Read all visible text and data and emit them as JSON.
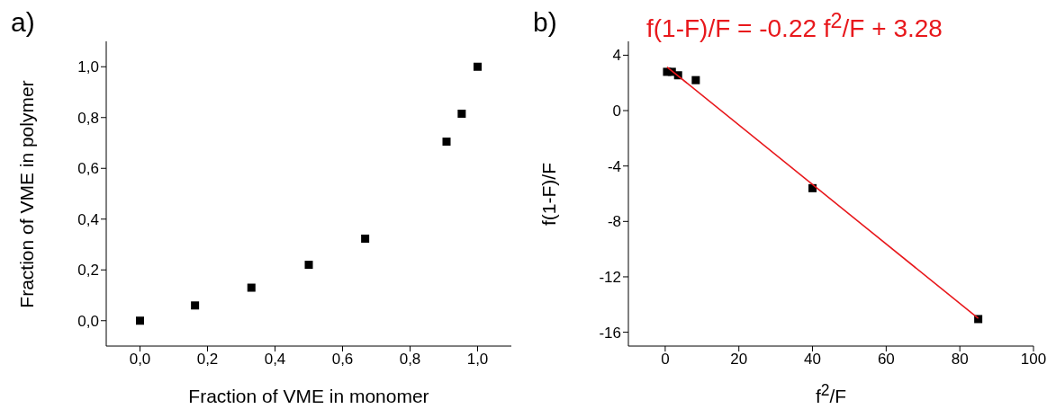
{
  "chart_data": [
    {
      "type": "scatter",
      "title": "a)",
      "xlabel": "Fraction of VME in monomer",
      "ylabel": "Fraction of VME in polymer",
      "marker": "square",
      "x": [
        0,
        0.163,
        0.33,
        0.5,
        0.667,
        0.908,
        0.953,
        1.0
      ],
      "series": [
        {
          "color": "#000000",
          "values": [
            0,
            0.06,
            0.13,
            0.22,
            0.323,
            0.705,
            0.815,
            1.0
          ]
        }
      ],
      "xlim": [
        -0.1,
        1.1
      ],
      "ylim": [
        -0.1,
        1.1
      ],
      "xticks": [
        {
          "value": 0,
          "label": "0,0"
        },
        {
          "value": 0.2,
          "label": "0,2"
        },
        {
          "value": 0.4,
          "label": "0,4"
        },
        {
          "value": 0.6,
          "label": "0,6"
        },
        {
          "value": 0.8,
          "label": "0,8"
        },
        {
          "value": 1.0,
          "label": "1,0"
        }
      ],
      "yticks": [
        {
          "value": 0,
          "label": "0,0"
        },
        {
          "value": 0.2,
          "label": "0,2"
        },
        {
          "value": 0.4,
          "label": "0,4"
        },
        {
          "value": 0.6,
          "label": "0,6"
        },
        {
          "value": 0.8,
          "label": "0,8"
        },
        {
          "value": 1.0,
          "label": "1,0"
        }
      ]
    },
    {
      "type": "scatter",
      "title": "b)",
      "xlabel": "f$^{2}$/F",
      "ylabel": "f(1-F)/F",
      "marker": "square",
      "annotations": [
        "f(1-F)/F = -0.22 f$^{2}$/F + 3.28"
      ],
      "x": [
        0.5,
        1.8,
        3.5,
        8.3,
        40,
        85
      ],
      "series": [
        {
          "color": "#000000",
          "values": [
            2.8,
            2.8,
            2.55,
            2.2,
            -5.6,
            -15.05
          ]
        },
        {
          "type": "line",
          "color": "#e8181c",
          "marker": "none",
          "x": [
            0.5,
            85
          ],
          "values": [
            3.15,
            -15.0
          ]
        }
      ],
      "xlim": [
        -10,
        100
      ],
      "ylim": [
        -17,
        5
      ],
      "xticks": [
        0,
        20,
        40,
        60,
        80,
        100
      ],
      "yticks": [
        4,
        0,
        -4,
        -8,
        -12,
        -16
      ]
    }
  ]
}
